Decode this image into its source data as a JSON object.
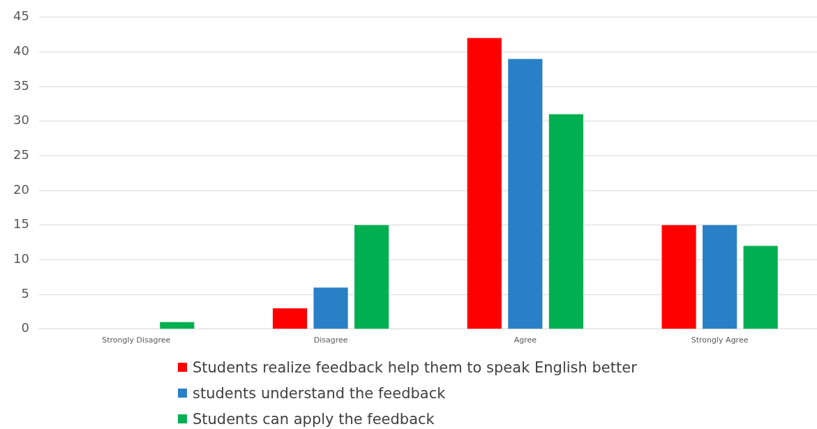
{
  "chart_data": {
    "type": "bar",
    "categories": [
      "Strongly Disagree",
      "Disagree",
      "Agree",
      "Strongly Agree"
    ],
    "series": [
      {
        "name": "Students realize feedback help them to speak English better",
        "color": "#ff0000",
        "values": [
          0,
          3,
          42,
          15
        ]
      },
      {
        "name": "students understand the feedback",
        "color": "#2a80c6",
        "values": [
          0,
          6,
          39,
          15
        ]
      },
      {
        "name": "Students can apply the feedback",
        "color": "#00b050",
        "values": [
          1,
          15,
          31,
          12
        ]
      }
    ],
    "ylim": [
      0,
      45
    ],
    "yticks": [
      0,
      5,
      10,
      15,
      20,
      25,
      30,
      35,
      40,
      45
    ],
    "grid": "y",
    "legend": "bottom"
  }
}
